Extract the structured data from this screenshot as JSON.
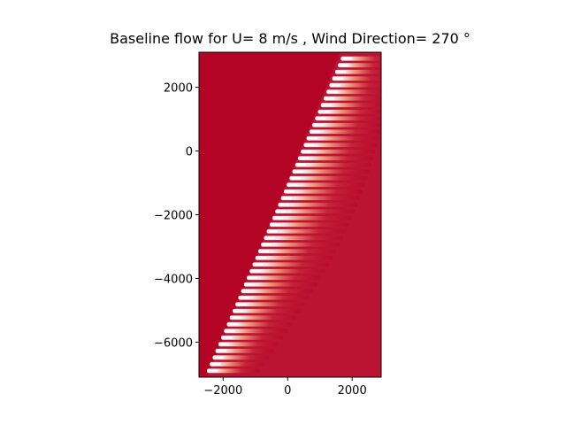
{
  "chart_data": {
    "type": "heatmap",
    "title": "Baseline flow for U= 8 m/s  ,  Wind Direction= 270  °",
    "xlabel": "",
    "ylabel": "",
    "xlim": [
      -2750,
      2900
    ],
    "ylim": [
      -7100,
      3100
    ],
    "x_ticks": [
      -2000,
      0,
      2000
    ],
    "x_tick_labels": [
      "−2000",
      "0",
      "2000"
    ],
    "y_ticks": [
      -6000,
      -4000,
      -2000,
      0,
      2000
    ],
    "y_tick_labels": [
      "−6000",
      "−4000",
      "−2000",
      "0",
      "2000"
    ],
    "turbine_row": {
      "count": 48,
      "start": {
        "x": -2500,
        "y": -6900
      },
      "end": {
        "x": 1650,
        "y": 2900
      }
    },
    "colors": {
      "background_field": "#b40426",
      "wake_light": "#f2f2f2",
      "wake_mid": "#f4a582",
      "wake_far": "#c9283b"
    }
  }
}
